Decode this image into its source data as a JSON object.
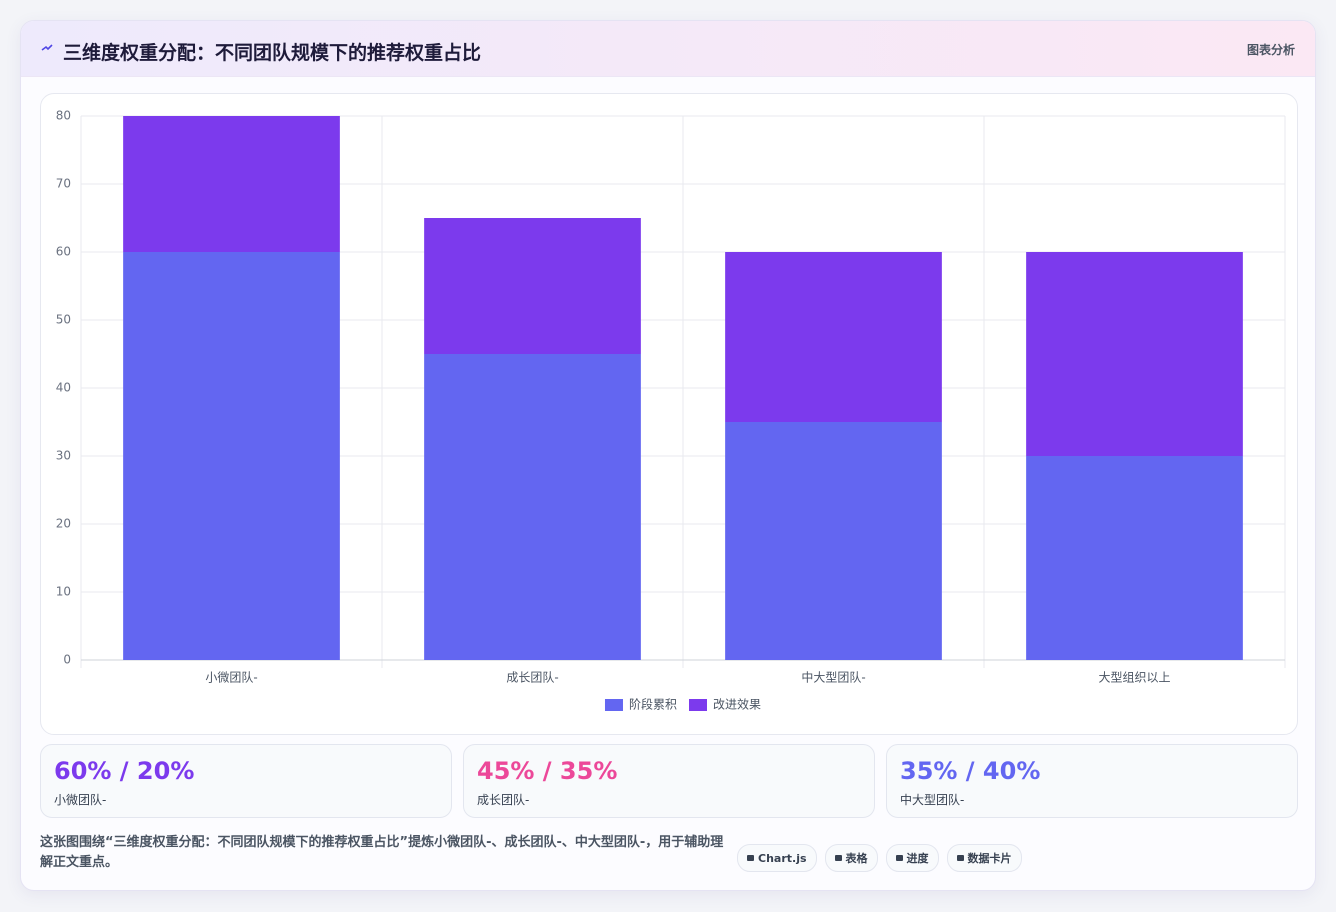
{
  "header": {
    "title": "三维度权重分配：不同团队规模下的推荐权重占比",
    "action": "图表分析"
  },
  "chart_data": {
    "type": "bar",
    "stacked": true,
    "categories": [
      "小微团队-",
      "成长团队-",
      "中大型团队-",
      "大型组织以上"
    ],
    "series": [
      {
        "name": "阶段累积",
        "color": "#6366f1",
        "values": [
          60,
          45,
          35,
          30
        ]
      },
      {
        "name": "改进效果",
        "color": "#7c3aed",
        "values": [
          20,
          20,
          25,
          30
        ]
      }
    ],
    "ylim": [
      0,
      80
    ],
    "yticks": [
      0,
      10,
      20,
      30,
      40,
      50,
      60,
      70,
      80
    ],
    "grid": true,
    "legend": "bottom"
  },
  "stats": [
    {
      "value": "60% / 20%",
      "label": "小微团队-",
      "color": "#7c3aed"
    },
    {
      "value": "45% / 35%",
      "label": "成长团队-",
      "color": "#ec4899"
    },
    {
      "value": "35% / 40%",
      "label": "中大型团队-",
      "color": "#6366f1"
    }
  ],
  "footer": {
    "description": "这张图围绕“三维度权重分配：不同团队规模下的推荐权重占比”提炼小微团队-、成长团队-、中大型团队-，用于辅助理解正文重点。",
    "tags": [
      "Chart.js",
      "表格",
      "进度",
      "数据卡片"
    ]
  }
}
